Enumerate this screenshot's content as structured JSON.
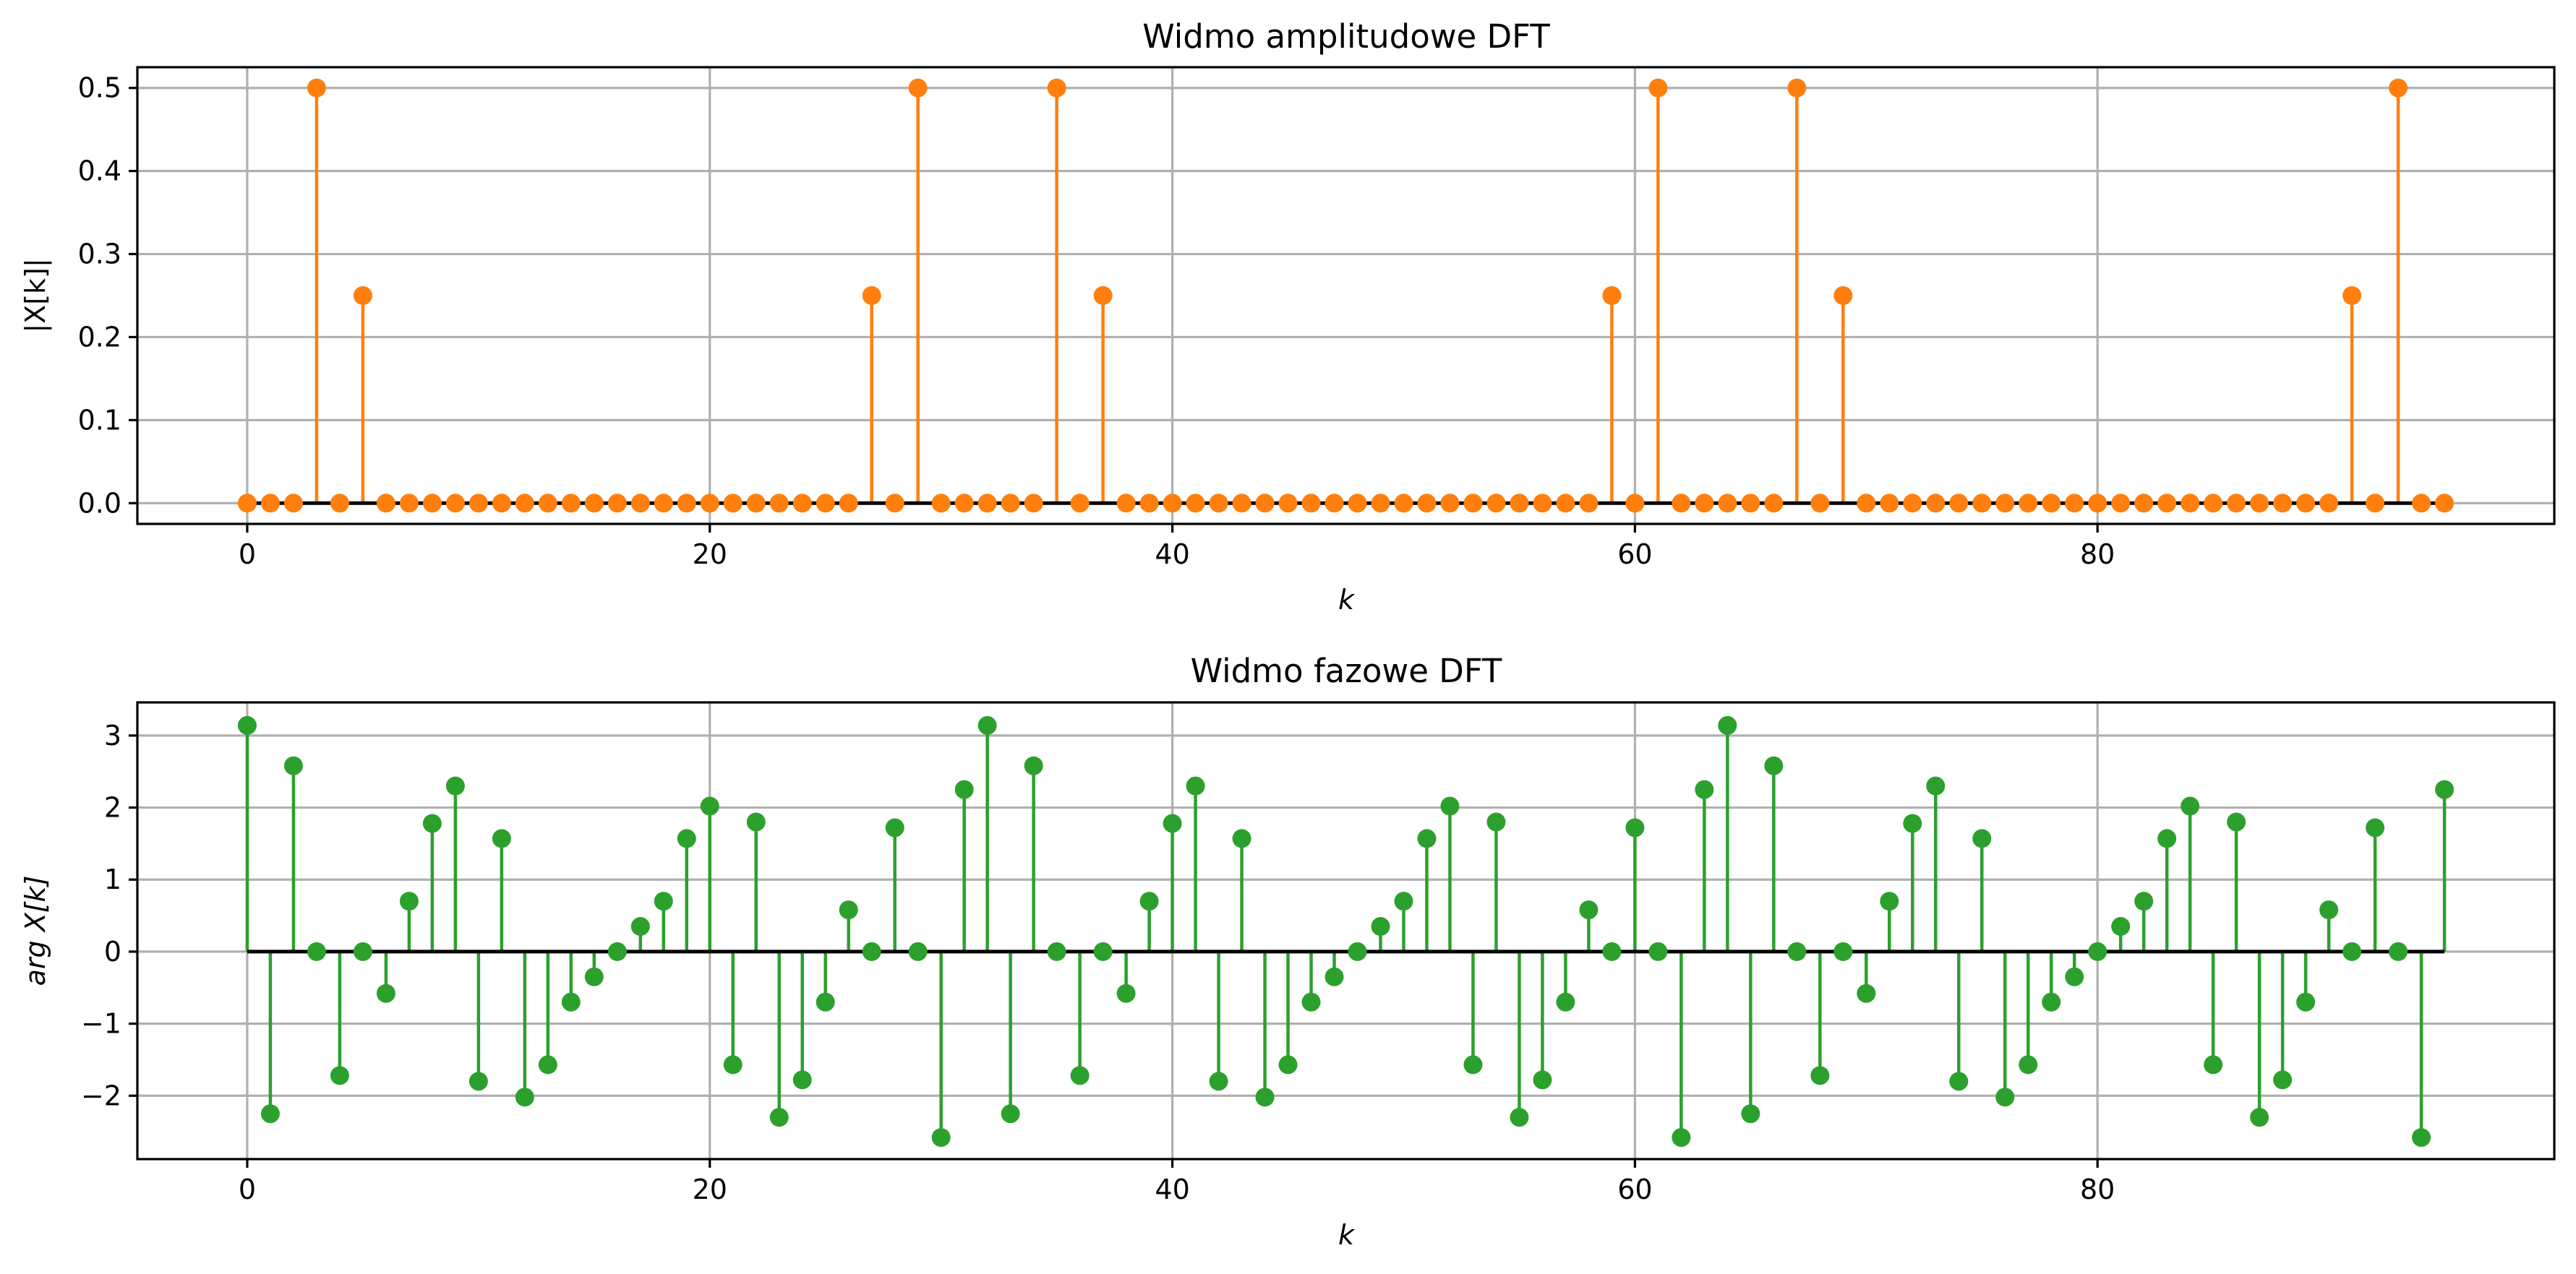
{
  "chart_data": [
    {
      "type": "stem",
      "title": "Widmo amplitudowe DFT",
      "xlabel": "k",
      "ylabel": "|X[k]|",
      "xlim": [
        -4.75,
        99.75
      ],
      "ylim": [
        -0.025,
        0.525
      ],
      "xticks": [
        0,
        20,
        40,
        60,
        80
      ],
      "xtick_labels": [
        "0",
        "20",
        "40",
        "60",
        "80"
      ],
      "yticks": [
        0.0,
        0.1,
        0.2,
        0.3,
        0.4,
        0.5
      ],
      "ytick_labels": [
        "0.0",
        "0.1",
        "0.2",
        "0.3",
        "0.4",
        "0.5"
      ],
      "grid": true,
      "color": "#ff7f0e",
      "baseline_color": "#000000",
      "x": [
        0,
        1,
        2,
        3,
        4,
        5,
        6,
        7,
        8,
        9,
        10,
        11,
        12,
        13,
        14,
        15,
        16,
        17,
        18,
        19,
        20,
        21,
        22,
        23,
        24,
        25,
        26,
        27,
        28,
        29,
        30,
        31,
        32,
        33,
        34,
        35,
        36,
        37,
        38,
        39,
        40,
        41,
        42,
        43,
        44,
        45,
        46,
        47,
        48,
        49,
        50,
        51,
        52,
        53,
        54,
        55,
        56,
        57,
        58,
        59,
        60,
        61,
        62,
        63,
        64,
        65,
        66,
        67,
        68,
        69,
        70,
        71,
        72,
        73,
        74,
        75,
        76,
        77,
        78,
        79,
        80,
        81,
        82,
        83,
        84,
        85,
        86,
        87,
        88,
        89,
        90,
        91,
        92,
        93,
        94,
        95
      ],
      "values": [
        0,
        0,
        0,
        0.5,
        0,
        0.25,
        0,
        0,
        0,
        0,
        0,
        0,
        0,
        0,
        0,
        0,
        0,
        0,
        0,
        0,
        0,
        0,
        0,
        0,
        0,
        0,
        0,
        0.25,
        0,
        0.5,
        0,
        0,
        0,
        0,
        0,
        0.5,
        0,
        0.25,
        0,
        0,
        0,
        0,
        0,
        0,
        0,
        0,
        0,
        0,
        0,
        0,
        0,
        0,
        0,
        0,
        0,
        0,
        0,
        0,
        0,
        0.25,
        0,
        0.5,
        0,
        0,
        0,
        0,
        0,
        0.5,
        0,
        0.25,
        0,
        0,
        0,
        0,
        0,
        0,
        0,
        0,
        0,
        0,
        0,
        0,
        0,
        0,
        0,
        0,
        0,
        0,
        0,
        0,
        0,
        0.25,
        0,
        0.5,
        0,
        0
      ]
    },
    {
      "type": "stem",
      "title": "Widmo fazowe DFT",
      "xlabel": "k",
      "ylabel": "arg X[k]",
      "xlim": [
        -4.75,
        99.75
      ],
      "ylim": [
        -2.88,
        3.46
      ],
      "xticks": [
        0,
        20,
        40,
        60,
        80
      ],
      "xtick_labels": [
        "0",
        "20",
        "40",
        "60",
        "80"
      ],
      "yticks": [
        -2,
        -1,
        0,
        1,
        2,
        3
      ],
      "ytick_labels": [
        "−2",
        "−1",
        "0",
        "1",
        "2",
        "3"
      ],
      "grid": true,
      "color": "#2ca02c",
      "baseline_color": "#000000",
      "x": [
        0,
        1,
        2,
        3,
        4,
        5,
        6,
        7,
        8,
        9,
        10,
        11,
        12,
        13,
        14,
        15,
        16,
        17,
        18,
        19,
        20,
        21,
        22,
        23,
        24,
        25,
        26,
        27,
        28,
        29,
        30,
        31,
        32,
        33,
        34,
        35,
        36,
        37,
        38,
        39,
        40,
        41,
        42,
        43,
        44,
        45,
        46,
        47,
        48,
        49,
        50,
        51,
        52,
        53,
        54,
        55,
        56,
        57,
        58,
        59,
        60,
        61,
        62,
        63,
        64,
        65,
        66,
        67,
        68,
        69,
        70,
        71,
        72,
        73,
        74,
        75,
        76,
        77,
        78,
        79,
        80,
        81,
        82,
        83,
        84,
        85,
        86,
        87,
        88,
        89,
        90,
        91,
        92,
        93,
        94,
        95
      ],
      "values": [
        3.14,
        -2.25,
        2.58,
        0,
        -1.72,
        0,
        -0.58,
        0.7,
        1.78,
        2.3,
        -1.8,
        1.57,
        -2.02,
        -1.57,
        -0.7,
        -0.35,
        0,
        0.35,
        0.7,
        1.57,
        2.02,
        -1.57,
        1.8,
        -2.3,
        -1.78,
        -0.7,
        0.58,
        0,
        1.72,
        0,
        -2.58,
        2.25,
        3.14,
        -2.25,
        2.58,
        0,
        -1.72,
        0,
        -0.58,
        0.7,
        1.78,
        2.3,
        -1.8,
        1.57,
        -2.02,
        -1.57,
        -0.7,
        -0.35,
        0,
        0.35,
        0.7,
        1.57,
        2.02,
        -1.57,
        1.8,
        -2.3,
        -1.78,
        -0.7,
        0.58,
        0,
        1.72,
        0,
        -2.58,
        2.25,
        3.14,
        -2.25,
        2.58,
        0,
        -1.72,
        0,
        -0.58,
        0.7,
        1.78,
        2.3,
        -1.8,
        1.57,
        -2.02,
        -1.57,
        -0.7,
        -0.35,
        0,
        0.35,
        0.7,
        1.57,
        2.02,
        -1.57,
        1.8,
        -2.3,
        -1.78,
        -0.7,
        0.58,
        0,
        1.72,
        0,
        -2.58,
        2.25
      ]
    }
  ]
}
